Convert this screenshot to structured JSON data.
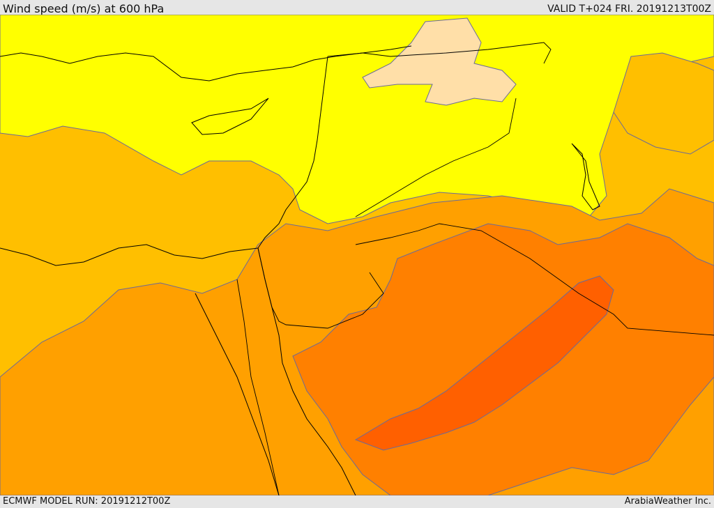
{
  "header": {
    "title": "Wind speed (m/s) at 600 hPa",
    "valid": "VALID T+024 FRI. 20191213T00Z"
  },
  "footer": {
    "model_run": "ECMWF MODEL RUN: 20191212T00Z",
    "credit": "ArabiaWeather Inc."
  },
  "map": {
    "palette": {
      "band_0": "#ffdfa8",
      "band_1": "#ffff00",
      "band_2": "#ffbf00",
      "band_3": "#ffa000",
      "band_4": "#ff8000",
      "band_5": "#ff6000",
      "contour": "#6a6a9a",
      "coastline": "#000000",
      "border": "#000000"
    }
  }
}
